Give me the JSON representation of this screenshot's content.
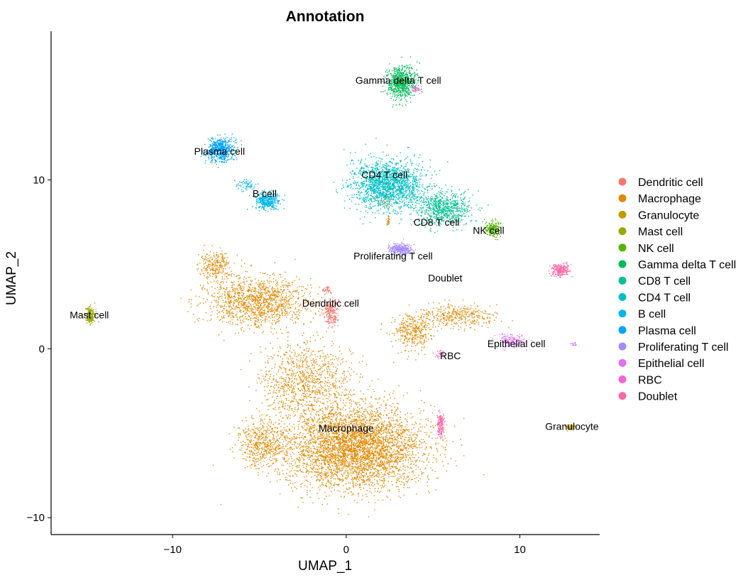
{
  "chart_data": {
    "type": "scatter",
    "title": "Annotation",
    "xlabel": "UMAP_1",
    "ylabel": "UMAP_2",
    "xlim": [
      -17.0,
      14.6
    ],
    "ylim": [
      -11.0,
      18.8
    ],
    "xticks": [
      {
        "value": -10,
        "label": "−10"
      },
      {
        "value": 0,
        "label": "0"
      },
      {
        "value": 10,
        "label": "10"
      }
    ],
    "yticks": [
      {
        "value": -10,
        "label": "−10"
      },
      {
        "value": 0,
        "label": "0"
      },
      {
        "value": 10,
        "label": "10"
      }
    ],
    "grid": false,
    "legend_position": "right",
    "series": [
      {
        "name": "Dendritic cell",
        "color": "#F8766D",
        "clusters": [
          {
            "center": [
              -0.9,
              2.2
            ],
            "spread": [
              0.4,
              0.8
            ],
            "n": 220
          },
          {
            "center": [
              -1.1,
              3.5
            ],
            "spread": [
              0.2,
              0.2
            ],
            "n": 30
          }
        ]
      },
      {
        "name": "Macrophage",
        "color": "#E38900",
        "clusters": [
          {
            "center": [
              0.5,
              -5.8
            ],
            "spread": [
              3.6,
              2.2
            ],
            "n": 4200
          },
          {
            "center": [
              -2.3,
              -2.0
            ],
            "spread": [
              2.4,
              2.2
            ],
            "n": 1000
          },
          {
            "center": [
              -5.2,
              2.8
            ],
            "spread": [
              2.7,
              1.3
            ],
            "n": 1300
          },
          {
            "center": [
              -7.6,
              5.0
            ],
            "spread": [
              0.9,
              0.7
            ],
            "n": 250
          },
          {
            "center": [
              -4.8,
              -5.6
            ],
            "spread": [
              1.3,
              1.2
            ],
            "n": 500
          },
          {
            "center": [
              3.8,
              1.0
            ],
            "spread": [
              1.1,
              1.0
            ],
            "n": 350
          },
          {
            "center": [
              6.3,
              2.0
            ],
            "spread": [
              1.9,
              0.6
            ],
            "n": 350
          },
          {
            "center": [
              2.4,
              7.6
            ],
            "spread": [
              0.1,
              0.3
            ],
            "n": 25
          },
          {
            "center": [
              2.2,
              8.8
            ],
            "spread": [
              0.3,
              0.4
            ],
            "n": 30
          }
        ]
      },
      {
        "name": "Granulocyte",
        "color": "#C49A00",
        "clusters": [
          {
            "center": [
              12.9,
              -4.6
            ],
            "spread": [
              0.25,
              0.15
            ],
            "n": 70
          }
        ]
      },
      {
        "name": "Mast cell",
        "color": "#99A800",
        "clusters": [
          {
            "center": [
              -14.8,
              2.0
            ],
            "spread": [
              0.25,
              0.45
            ],
            "n": 200
          }
        ]
      },
      {
        "name": "NK cell",
        "color": "#53B400",
        "clusters": [
          {
            "center": [
              8.4,
              7.1
            ],
            "spread": [
              0.4,
              0.4
            ],
            "n": 220
          }
        ]
      },
      {
        "name": "Gamma delta T cell",
        "color": "#00BC56",
        "clusters": [
          {
            "center": [
              3.1,
              15.8
            ],
            "spread": [
              0.75,
              0.9
            ],
            "n": 700
          }
        ]
      },
      {
        "name": "CD8 T cell",
        "color": "#00C094",
        "clusters": [
          {
            "center": [
              5.6,
              8.3
            ],
            "spread": [
              1.4,
              0.9
            ],
            "n": 700
          }
        ]
      },
      {
        "name": "CD4 T cell",
        "color": "#00BFC4",
        "clusters": [
          {
            "center": [
              2.4,
              9.7
            ],
            "spread": [
              1.9,
              1.3
            ],
            "n": 1800
          }
        ]
      },
      {
        "name": "B cell",
        "color": "#00B6EB",
        "clusters": [
          {
            "center": [
              -4.6,
              8.8
            ],
            "spread": [
              0.6,
              0.45
            ],
            "n": 350
          },
          {
            "center": [
              -5.7,
              9.7
            ],
            "spread": [
              0.5,
              0.3
            ],
            "n": 60
          }
        ]
      },
      {
        "name": "Plasma cell",
        "color": "#06A4FF",
        "clusters": [
          {
            "center": [
              -7.3,
              11.8
            ],
            "spread": [
              0.7,
              0.6
            ],
            "n": 600
          }
        ]
      },
      {
        "name": "Proliferating T cell",
        "color": "#A58AFF",
        "clusters": [
          {
            "center": [
              3.1,
              5.9
            ],
            "spread": [
              0.6,
              0.3
            ],
            "n": 300
          }
        ]
      },
      {
        "name": "Epithelial cell",
        "color": "#DF70F8",
        "clusters": [
          {
            "center": [
              9.4,
              0.5
            ],
            "spread": [
              0.8,
              0.35
            ],
            "n": 140
          },
          {
            "center": [
              13.1,
              0.3
            ],
            "spread": [
              0.15,
              0.1
            ],
            "n": 15
          }
        ]
      },
      {
        "name": "RBC",
        "color": "#FB61D7",
        "clusters": [
          {
            "center": [
              5.4,
              -0.3
            ],
            "spread": [
              0.25,
              0.3
            ],
            "n": 30
          },
          {
            "center": [
              4.0,
              15.4
            ],
            "spread": [
              0.3,
              0.3
            ],
            "n": 30
          }
        ]
      },
      {
        "name": "Doublet",
        "color": "#FF66A8",
        "clusters": [
          {
            "center": [
              12.3,
              4.7
            ],
            "spread": [
              0.45,
              0.35
            ],
            "n": 220
          },
          {
            "center": [
              5.4,
              -4.5
            ],
            "spread": [
              0.2,
              0.7
            ],
            "n": 160
          }
        ]
      }
    ],
    "labels": [
      {
        "text": "Gamma delta T cell",
        "x": 3.0,
        "y": 15.9
      },
      {
        "text": "Plasma cell",
        "x": -7.3,
        "y": 11.7
      },
      {
        "text": "CD4 T cell",
        "x": 2.2,
        "y": 10.3
      },
      {
        "text": "B cell",
        "x": -4.7,
        "y": 9.2
      },
      {
        "text": "CD8 T cell",
        "x": 5.2,
        "y": 7.5
      },
      {
        "text": "NK cell",
        "x": 8.2,
        "y": 7.0
      },
      {
        "text": "Proliferating T cell",
        "x": 2.7,
        "y": 5.5
      },
      {
        "text": "Doublet",
        "x": 5.7,
        "y": 4.2
      },
      {
        "text": "Dendritic cell",
        "x": -0.9,
        "y": 2.7
      },
      {
        "text": "Mast cell",
        "x": -14.8,
        "y": 2.0
      },
      {
        "text": "Epithelial cell",
        "x": 9.8,
        "y": 0.3
      },
      {
        "text": "RBC",
        "x": 6.0,
        "y": -0.4
      },
      {
        "text": "Macrophage",
        "x": 0.0,
        "y": -4.7
      },
      {
        "text": "Granulocyte",
        "x": 13.0,
        "y": -4.6
      }
    ]
  }
}
